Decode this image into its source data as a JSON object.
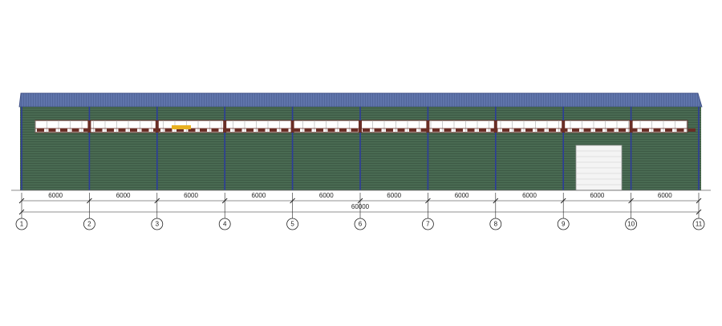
{
  "dimensions": {
    "spans": [
      6000,
      6000,
      6000,
      6000,
      6000,
      6000,
      6000,
      6000,
      6000,
      6000
    ],
    "total": 60000
  },
  "axes": [
    "1",
    "2",
    "3",
    "4",
    "5",
    "6",
    "7",
    "8",
    "9",
    "10",
    "11"
  ]
}
